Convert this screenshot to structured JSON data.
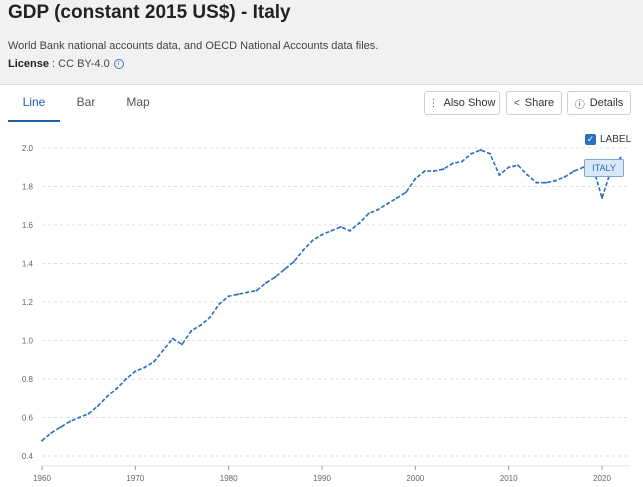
{
  "page": {
    "title": "GDP (constant 2015 US$) - Italy",
    "source": "World Bank national accounts data, and OECD National Accounts data files.",
    "license_label": "License",
    "license_value": " : CC BY-4.0"
  },
  "tabs": [
    {
      "label": "Line",
      "active": true
    },
    {
      "label": "Bar",
      "active": false
    },
    {
      "label": "Map",
      "active": false
    }
  ],
  "tools": {
    "also_show": "Also Show",
    "share": "Share",
    "details": "Details"
  },
  "icons": {
    "info": "info-icon",
    "also_show": "vertical-dots-icon",
    "share": "share-icon",
    "details": "info-circle-icon",
    "checkbox": "checkbox-checked-icon"
  },
  "colors": {
    "accent": "#1f5fa8",
    "line": "#2a6fbd"
  },
  "label_toggle": {
    "text": "LABEL",
    "checked": true
  },
  "chart_data": {
    "type": "line",
    "title": "",
    "xlabel": "",
    "ylabel": "",
    "xlim": [
      1960,
      2023
    ],
    "ylim": [
      0.4,
      2.0
    ],
    "y_ticks": [
      "0.4",
      "0.6",
      "0.8",
      "1.0",
      "1.2",
      "1.4",
      "1.6",
      "1.8",
      "2.0"
    ],
    "x_ticks": [
      "1960",
      "1970",
      "1980",
      "1990",
      "2000",
      "2010",
      "2020"
    ],
    "grid": true,
    "series": [
      {
        "name": "ITALY",
        "x": [
          1960,
          1961,
          1962,
          1963,
          1964,
          1965,
          1966,
          1967,
          1968,
          1969,
          1970,
          1971,
          1972,
          1973,
          1974,
          1975,
          1976,
          1977,
          1978,
          1979,
          1980,
          1981,
          1982,
          1983,
          1984,
          1985,
          1986,
          1987,
          1988,
          1989,
          1990,
          1991,
          1992,
          1993,
          1994,
          1995,
          1996,
          1997,
          1998,
          1999,
          2000,
          2001,
          2002,
          2003,
          2004,
          2005,
          2006,
          2007,
          2008,
          2009,
          2010,
          2011,
          2012,
          2013,
          2014,
          2015,
          2016,
          2017,
          2018,
          2019,
          2020,
          2021,
          2022
        ],
        "values": [
          0.48,
          0.52,
          0.55,
          0.58,
          0.6,
          0.62,
          0.66,
          0.71,
          0.75,
          0.8,
          0.84,
          0.86,
          0.89,
          0.95,
          1.01,
          0.98,
          1.05,
          1.08,
          1.12,
          1.19,
          1.23,
          1.24,
          1.25,
          1.26,
          1.3,
          1.33,
          1.37,
          1.41,
          1.47,
          1.52,
          1.55,
          1.57,
          1.59,
          1.57,
          1.61,
          1.66,
          1.68,
          1.71,
          1.74,
          1.77,
          1.84,
          1.88,
          1.88,
          1.89,
          1.92,
          1.93,
          1.97,
          1.99,
          1.97,
          1.86,
          1.9,
          1.91,
          1.86,
          1.82,
          1.82,
          1.83,
          1.85,
          1.88,
          1.9,
          1.91,
          1.74,
          1.89,
          1.95
        ]
      }
    ]
  }
}
